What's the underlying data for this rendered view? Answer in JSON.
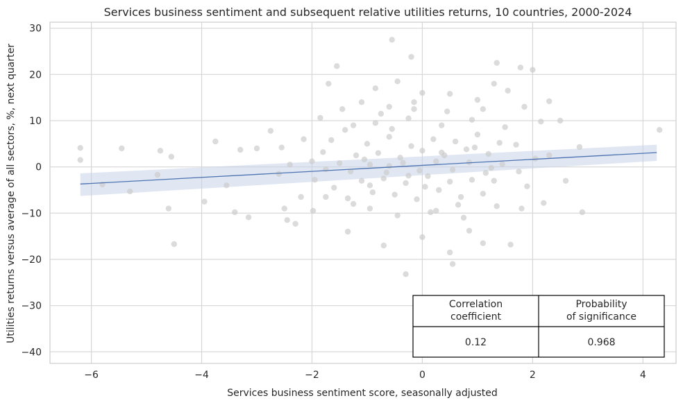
{
  "chart_data": {
    "type": "scatter",
    "title": "Services business sentiment and subsequent relative utilities returns, 10 countries, 2000-2024",
    "xlabel": "Services business sentiment score, seasonally adjusted",
    "ylabel": "Utilities returns versus average of all sectors, %, next quarter",
    "xlim": [
      -6.75,
      4.6
    ],
    "ylim": [
      -42.5,
      31.3
    ],
    "xticks": [
      -6,
      -4,
      -2,
      0,
      2,
      4
    ],
    "yticks": [
      -40,
      -30,
      -20,
      -10,
      0,
      10,
      20,
      30
    ],
    "grid": true,
    "point_color": "#cccccc",
    "line_color": "#4c72b0",
    "band_color": "#c6d4ea",
    "regression": {
      "x": [
        -6.2,
        4.25
      ],
      "y": [
        -3.7,
        3.1
      ],
      "ci_lower": [
        -6.3,
        1.3
      ],
      "ci_upper": [
        -1.4,
        4.8
      ]
    },
    "points": [
      [
        -6.2,
        4.1
      ],
      [
        -6.2,
        1.5
      ],
      [
        -5.45,
        4.0
      ],
      [
        -5.8,
        -3.8
      ],
      [
        -5.3,
        -5.3
      ],
      [
        -4.75,
        3.5
      ],
      [
        -4.55,
        2.2
      ],
      [
        -4.5,
        -16.7
      ],
      [
        -4.6,
        -9.0
      ],
      [
        -4.8,
        -1.7
      ],
      [
        -3.95,
        -7.5
      ],
      [
        -3.75,
        5.5
      ],
      [
        -3.55,
        -4.0
      ],
      [
        -3.4,
        -9.8
      ],
      [
        -3.3,
        3.7
      ],
      [
        -3.15,
        -10.9
      ],
      [
        -3.0,
        4.0
      ],
      [
        -2.75,
        7.8
      ],
      [
        -2.55,
        4.2
      ],
      [
        -2.5,
        -9.0
      ],
      [
        -2.45,
        -11.5
      ],
      [
        -2.3,
        -12.3
      ],
      [
        -2.2,
        -6.5
      ],
      [
        -2.15,
        6.0
      ],
      [
        -1.98,
        -9.5
      ],
      [
        -1.85,
        10.6
      ],
      [
        -1.75,
        -6.5
      ],
      [
        -1.7,
        18.0
      ],
      [
        -1.55,
        21.8
      ],
      [
        -1.45,
        12.5
      ],
      [
        -1.35,
        -14.0
      ],
      [
        -1.25,
        9.0
      ],
      [
        -1.1,
        14.0
      ],
      [
        -0.95,
        -4.0
      ],
      [
        -0.85,
        17.0
      ],
      [
        -0.7,
        -17.0
      ],
      [
        -0.6,
        13.0
      ],
      [
        -0.55,
        27.5
      ],
      [
        -0.45,
        18.5
      ],
      [
        -0.3,
        -23.2
      ],
      [
        -0.2,
        23.8
      ],
      [
        -0.15,
        12.5
      ],
      [
        0.0,
        -15.2
      ],
      [
        0.0,
        16.0
      ],
      [
        0.25,
        -9.5
      ],
      [
        0.5,
        -18.5
      ],
      [
        0.5,
        15.8
      ],
      [
        0.55,
        -21.0
      ],
      [
        0.85,
        -13.8
      ],
      [
        1.0,
        14.5
      ],
      [
        1.1,
        -16.5
      ],
      [
        1.35,
        22.5
      ],
      [
        1.3,
        18.0
      ],
      [
        1.6,
        -16.8
      ],
      [
        1.55,
        16.5
      ],
      [
        1.8,
        -9.0
      ],
      [
        1.78,
        21.5
      ],
      [
        2.0,
        21.0
      ],
      [
        2.2,
        -7.8
      ],
      [
        2.3,
        14.2
      ],
      [
        2.5,
        10.0
      ],
      [
        2.85,
        4.3
      ],
      [
        2.9,
        -9.8
      ],
      [
        4.3,
        8.0
      ],
      [
        1.85,
        13.0
      ],
      [
        2.15,
        9.8
      ],
      [
        -1.2,
        2.5
      ],
      [
        -1.0,
        5.0
      ],
      [
        -0.8,
        3.0
      ],
      [
        -0.6,
        6.5
      ],
      [
        -0.4,
        2.0
      ],
      [
        -0.2,
        4.5
      ],
      [
        0.0,
        3.5
      ],
      [
        0.2,
        6.0
      ],
      [
        0.4,
        2.5
      ],
      [
        0.6,
        5.5
      ],
      [
        0.8,
        3.8
      ],
      [
        1.0,
        7.0
      ],
      [
        1.2,
        2.8
      ],
      [
        1.4,
        5.2
      ],
      [
        -1.1,
        -3.0
      ],
      [
        -0.9,
        -5.5
      ],
      [
        -0.7,
        -2.5
      ],
      [
        -0.5,
        -6.0
      ],
      [
        -0.3,
        -3.5
      ],
      [
        -0.1,
        -7.0
      ],
      [
        0.1,
        -2.0
      ],
      [
        0.3,
        -5.0
      ],
      [
        0.5,
        -3.2
      ],
      [
        0.7,
        -6.5
      ],
      [
        0.9,
        -2.8
      ],
      [
        1.1,
        -5.8
      ],
      [
        1.3,
        -3.0
      ],
      [
        -1.5,
        0.8
      ],
      [
        -1.3,
        -1.0
      ],
      [
        -0.95,
        0.5
      ],
      [
        -0.65,
        -1.2
      ],
      [
        -0.35,
        0.9
      ],
      [
        -0.05,
        -0.8
      ],
      [
        0.25,
        1.2
      ],
      [
        0.55,
        -0.6
      ],
      [
        0.85,
        1.0
      ],
      [
        1.15,
        -1.3
      ],
      [
        1.45,
        0.6
      ],
      [
        1.75,
        -1.0
      ],
      [
        2.05,
        1.8
      ],
      [
        -1.8,
        3.2
      ],
      [
        -1.6,
        -4.5
      ],
      [
        -2.0,
        1.2
      ],
      [
        -1.95,
        -2.8
      ],
      [
        -2.4,
        0.5
      ],
      [
        -2.6,
        -1.5
      ],
      [
        -1.4,
        8.0
      ],
      [
        -0.85,
        9.5
      ],
      [
        -0.25,
        10.5
      ],
      [
        0.35,
        9.0
      ],
      [
        0.9,
        10.2
      ],
      [
        1.5,
        8.6
      ],
      [
        -0.95,
        -9.0
      ],
      [
        -0.45,
        -10.5
      ],
      [
        0.15,
        -9.8
      ],
      [
        0.75,
        -11.0
      ],
      [
        1.35,
        -8.5
      ],
      [
        -1.25,
        -8.0
      ],
      [
        1.7,
        4.8
      ],
      [
        1.9,
        -4.2
      ],
      [
        2.3,
        2.5
      ],
      [
        2.6,
        -3.0
      ],
      [
        -0.15,
        14.0
      ],
      [
        0.45,
        12.0
      ],
      [
        -0.75,
        11.5
      ],
      [
        1.1,
        12.5
      ],
      [
        -1.65,
        5.8
      ],
      [
        -1.35,
        -6.8
      ],
      [
        -0.55,
        8.2
      ],
      [
        0.65,
        -8.2
      ],
      [
        -1.05,
        1.6
      ],
      [
        0.05,
        -4.3
      ],
      [
        0.95,
        4.2
      ],
      [
        -0.25,
        -1.9
      ],
      [
        0.35,
        3.1
      ],
      [
        -0.6,
        0.2
      ],
      [
        1.25,
        -0.2
      ],
      [
        -1.75,
        -0.5
      ]
    ],
    "stats_table": {
      "headers": [
        "Correlation\ncoefficient",
        "Probability\nof significance"
      ],
      "values": [
        "0.12",
        "0.968"
      ]
    }
  }
}
